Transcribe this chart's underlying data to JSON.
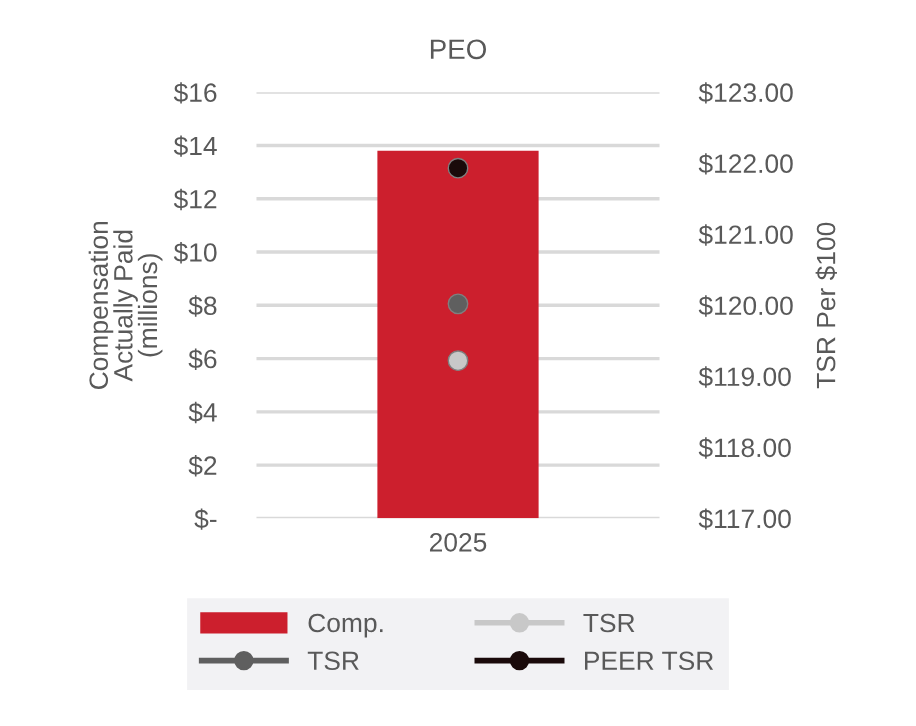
{
  "chart_data": {
    "type": "bar",
    "title": "PEO",
    "ylabel": "Compensation\nActually Paid\n(millions)",
    "y2label": "TSR Per $100",
    "categories": [
      "2025"
    ],
    "series": [
      {
        "name": "Comp.",
        "color": "#cc1f2d",
        "values": [
          13.8
        ]
      },
      {
        "name": "TSR",
        "type": "line",
        "axis": "y2",
        "color": "#c8c8c8",
        "values": [
          119.22
        ]
      },
      {
        "name": "TSR",
        "type": "line",
        "axis": "y2",
        "color": "#5f5f5f",
        "values": [
          120.02
        ]
      },
      {
        "name": "PEER TSR",
        "type": "line",
        "axis": "y2",
        "color": "#1a0a0a",
        "values": [
          121.93
        ]
      }
    ],
    "marker": "circle",
    "ylim": [
      0,
      16
    ],
    "yticks": [
      {
        "value": 0,
        "label": "$-"
      },
      {
        "value": 2,
        "label": "$2"
      },
      {
        "value": 4,
        "label": "$4"
      },
      {
        "value": 6,
        "label": "$6"
      },
      {
        "value": 8,
        "label": "$8"
      },
      {
        "value": 10,
        "label": "$10"
      },
      {
        "value": 12,
        "label": "$12"
      },
      {
        "value": 14,
        "label": "$14"
      },
      {
        "value": 16,
        "label": "$16"
      }
    ],
    "y2lim": [
      117,
      123
    ],
    "y2ticks": [
      {
        "value": 117,
        "label": "$117.00"
      },
      {
        "value": 118,
        "label": "$118.00"
      },
      {
        "value": 119,
        "label": "$119.00"
      },
      {
        "value": 120,
        "label": "$120.00"
      },
      {
        "value": 121,
        "label": "$121.00"
      },
      {
        "value": 122,
        "label": "$122.00"
      },
      {
        "value": 123,
        "label": "$123.00"
      }
    ],
    "grid": "y",
    "legend": "bottom"
  }
}
